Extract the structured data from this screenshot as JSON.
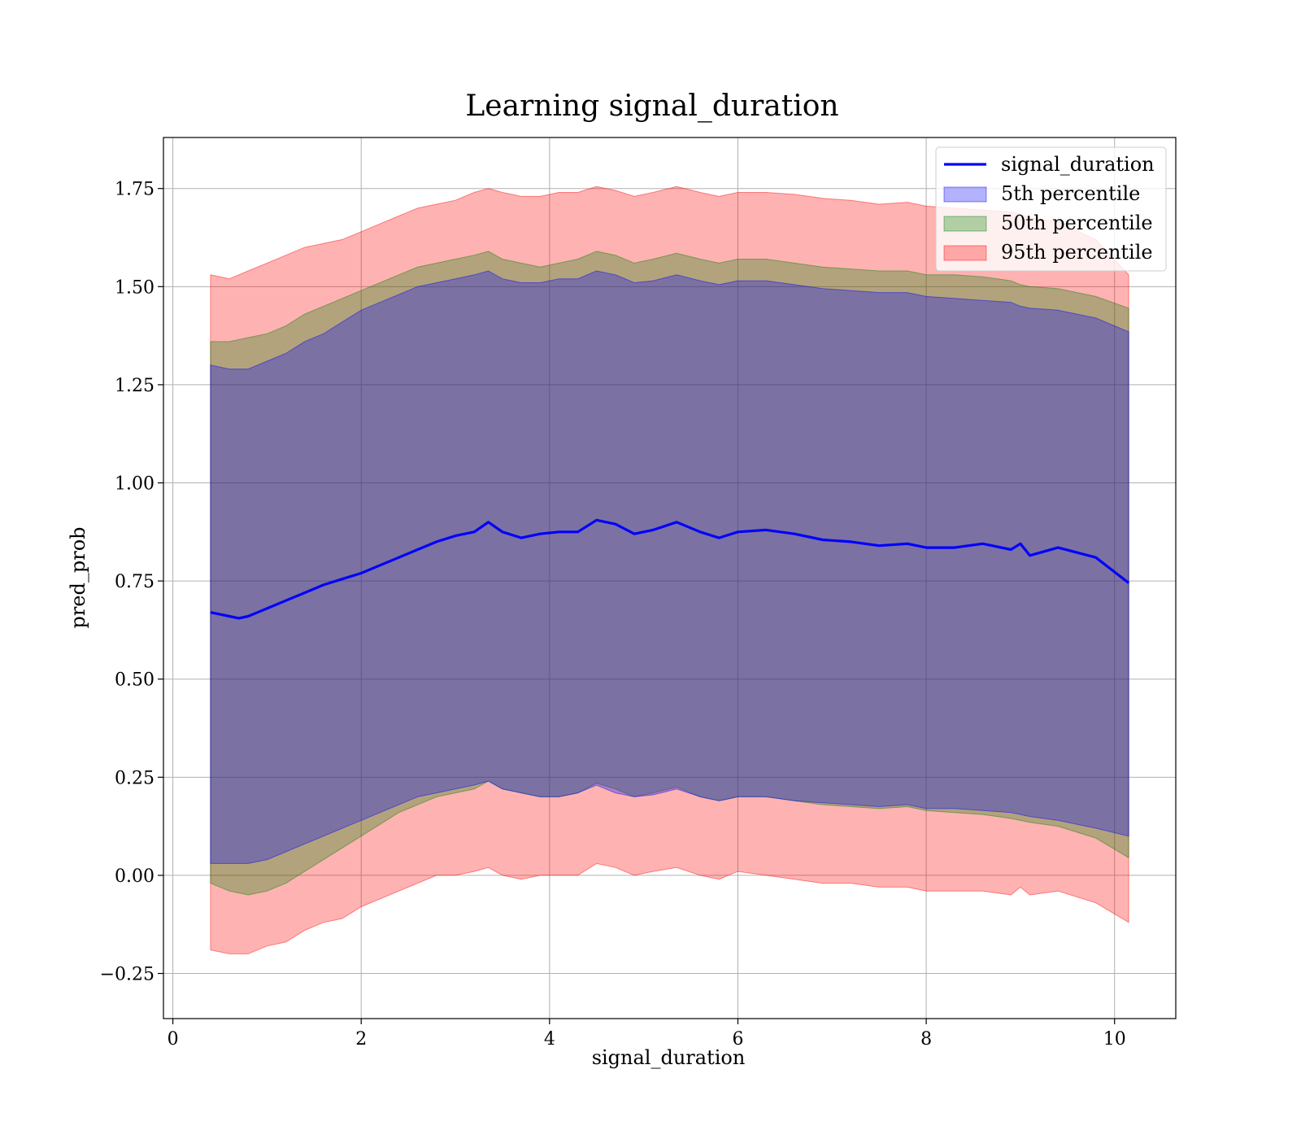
{
  "chart_data": {
    "type": "line",
    "title": "Learning signal_duration",
    "xlabel": "signal_duration",
    "ylabel": "pred_prob",
    "xlim": [
      -0.1,
      10.65
    ],
    "ylim": [
      -0.365,
      1.88
    ],
    "xticks": [
      0,
      2,
      4,
      6,
      8,
      10
    ],
    "xtick_labels": [
      "0",
      "2",
      "4",
      "6",
      "8",
      "10"
    ],
    "yticks": [
      -0.25,
      0,
      0.25,
      0.5,
      0.75,
      1.0,
      1.25,
      1.5,
      1.75
    ],
    "ytick_labels": [
      "−0.25",
      "0.00",
      "0.25",
      "0.50",
      "0.75",
      "1.00",
      "1.25",
      "1.50",
      "1.75"
    ],
    "grid": true,
    "legend_position": "top-right",
    "legend": [
      {
        "label": "signal_duration",
        "kind": "line",
        "color": "#0000ff"
      },
      {
        "label": "5th percentile",
        "kind": "patch",
        "color": "#0000ff"
      },
      {
        "label": "50th percentile",
        "kind": "patch",
        "color": "#008000"
      },
      {
        "label": "95th percentile",
        "kind": "patch",
        "color": "#ff0000"
      }
    ],
    "series": [
      {
        "name": "signal_duration",
        "color": "#0000ff",
        "x": [
          0.4,
          0.5,
          0.6,
          0.7,
          0.8,
          0.9,
          1.0,
          1.2,
          1.4,
          1.6,
          1.8,
          2.0,
          2.2,
          2.4,
          2.6,
          2.8,
          3.0,
          3.2,
          3.35,
          3.5,
          3.7,
          3.9,
          4.1,
          4.3,
          4.5,
          4.7,
          4.9,
          5.1,
          5.35,
          5.6,
          5.8,
          6.0,
          6.3,
          6.6,
          6.9,
          7.2,
          7.5,
          7.8,
          8.0,
          8.3,
          8.6,
          8.9,
          9.0,
          9.1,
          9.4,
          9.8,
          10.15
        ],
        "y": [
          0.67,
          0.665,
          0.66,
          0.655,
          0.66,
          0.67,
          0.68,
          0.7,
          0.72,
          0.74,
          0.755,
          0.77,
          0.79,
          0.81,
          0.83,
          0.85,
          0.865,
          0.875,
          0.9,
          0.875,
          0.86,
          0.87,
          0.875,
          0.875,
          0.905,
          0.895,
          0.87,
          0.88,
          0.9,
          0.875,
          0.86,
          0.875,
          0.88,
          0.87,
          0.855,
          0.85,
          0.84,
          0.845,
          0.835,
          0.835,
          0.845,
          0.83,
          0.845,
          0.815,
          0.835,
          0.81,
          0.745
        ]
      }
    ],
    "bands": [
      {
        "name": "95th percentile",
        "color": "#ff0000",
        "opacity": 0.3,
        "x": [
          0.4,
          0.6,
          0.8,
          1.0,
          1.2,
          1.4,
          1.6,
          1.8,
          2.0,
          2.2,
          2.4,
          2.6,
          2.8,
          3.0,
          3.2,
          3.35,
          3.5,
          3.7,
          3.9,
          4.1,
          4.3,
          4.5,
          4.7,
          4.9,
          5.1,
          5.35,
          5.6,
          5.8,
          6.0,
          6.3,
          6.6,
          6.9,
          7.2,
          7.5,
          7.8,
          8.0,
          8.3,
          8.6,
          8.9,
          9.0,
          9.1,
          9.4,
          9.8,
          10.15
        ],
        "upper": [
          1.53,
          1.52,
          1.54,
          1.56,
          1.58,
          1.6,
          1.61,
          1.62,
          1.64,
          1.66,
          1.68,
          1.7,
          1.71,
          1.72,
          1.74,
          1.75,
          1.74,
          1.73,
          1.73,
          1.74,
          1.74,
          1.755,
          1.745,
          1.73,
          1.74,
          1.755,
          1.74,
          1.73,
          1.74,
          1.74,
          1.735,
          1.725,
          1.72,
          1.71,
          1.715,
          1.705,
          1.7,
          1.695,
          1.69,
          1.685,
          1.675,
          1.665,
          1.62,
          1.53
        ],
        "lower": [
          -0.19,
          -0.2,
          -0.2,
          -0.18,
          -0.17,
          -0.14,
          -0.12,
          -0.11,
          -0.08,
          -0.06,
          -0.04,
          -0.02,
          0.0,
          0.0,
          0.01,
          0.02,
          0.0,
          -0.01,
          0.0,
          0.0,
          0.0,
          0.03,
          0.02,
          0.0,
          0.01,
          0.02,
          0.0,
          -0.01,
          0.01,
          0.0,
          -0.01,
          -0.02,
          -0.02,
          -0.03,
          -0.03,
          -0.04,
          -0.04,
          -0.04,
          -0.05,
          -0.03,
          -0.05,
          -0.04,
          -0.07,
          -0.12
        ]
      },
      {
        "name": "50th percentile",
        "color": "#008000",
        "opacity": 0.3,
        "x": [
          0.4,
          0.6,
          0.8,
          1.0,
          1.2,
          1.4,
          1.6,
          1.8,
          2.0,
          2.2,
          2.4,
          2.6,
          2.8,
          3.0,
          3.2,
          3.35,
          3.5,
          3.7,
          3.9,
          4.1,
          4.3,
          4.5,
          4.7,
          4.9,
          5.1,
          5.35,
          5.6,
          5.8,
          6.0,
          6.3,
          6.6,
          6.9,
          7.2,
          7.5,
          7.8,
          8.0,
          8.3,
          8.6,
          8.9,
          9.0,
          9.1,
          9.4,
          9.8,
          10.15
        ],
        "upper": [
          1.36,
          1.36,
          1.37,
          1.38,
          1.4,
          1.43,
          1.45,
          1.47,
          1.49,
          1.51,
          1.53,
          1.55,
          1.56,
          1.57,
          1.58,
          1.59,
          1.57,
          1.56,
          1.55,
          1.56,
          1.57,
          1.59,
          1.58,
          1.56,
          1.57,
          1.585,
          1.57,
          1.56,
          1.57,
          1.57,
          1.56,
          1.55,
          1.545,
          1.54,
          1.54,
          1.53,
          1.53,
          1.525,
          1.515,
          1.505,
          1.5,
          1.495,
          1.475,
          1.445
        ],
        "lower": [
          -0.02,
          -0.04,
          -0.05,
          -0.04,
          -0.02,
          0.01,
          0.04,
          0.07,
          0.1,
          0.13,
          0.16,
          0.18,
          0.2,
          0.21,
          0.22,
          0.24,
          0.22,
          0.21,
          0.2,
          0.2,
          0.21,
          0.235,
          0.22,
          0.2,
          0.21,
          0.225,
          0.2,
          0.19,
          0.2,
          0.2,
          0.19,
          0.18,
          0.175,
          0.17,
          0.175,
          0.165,
          0.16,
          0.155,
          0.145,
          0.14,
          0.135,
          0.125,
          0.095,
          0.045
        ]
      },
      {
        "name": "5th percentile",
        "color": "#0000ff",
        "opacity": 0.3,
        "x": [
          0.4,
          0.6,
          0.8,
          1.0,
          1.2,
          1.4,
          1.6,
          1.8,
          2.0,
          2.2,
          2.4,
          2.6,
          2.8,
          3.0,
          3.2,
          3.35,
          3.5,
          3.7,
          3.9,
          4.1,
          4.3,
          4.5,
          4.7,
          4.9,
          5.1,
          5.35,
          5.6,
          5.8,
          6.0,
          6.3,
          6.6,
          6.9,
          7.2,
          7.5,
          7.8,
          8.0,
          8.3,
          8.6,
          8.9,
          9.0,
          9.1,
          9.4,
          9.8,
          10.15
        ],
        "upper": [
          1.3,
          1.29,
          1.29,
          1.31,
          1.33,
          1.36,
          1.38,
          1.41,
          1.44,
          1.46,
          1.48,
          1.5,
          1.51,
          1.52,
          1.53,
          1.54,
          1.52,
          1.51,
          1.51,
          1.52,
          1.52,
          1.54,
          1.53,
          1.51,
          1.515,
          1.53,
          1.515,
          1.505,
          1.515,
          1.515,
          1.505,
          1.495,
          1.49,
          1.485,
          1.485,
          1.475,
          1.47,
          1.465,
          1.46,
          1.45,
          1.445,
          1.44,
          1.42,
          1.385
        ],
        "lower": [
          0.03,
          0.03,
          0.03,
          0.04,
          0.06,
          0.08,
          0.1,
          0.12,
          0.14,
          0.16,
          0.18,
          0.2,
          0.21,
          0.22,
          0.23,
          0.24,
          0.22,
          0.21,
          0.2,
          0.2,
          0.21,
          0.23,
          0.21,
          0.2,
          0.205,
          0.22,
          0.2,
          0.19,
          0.2,
          0.2,
          0.19,
          0.185,
          0.18,
          0.175,
          0.18,
          0.17,
          0.17,
          0.165,
          0.16,
          0.155,
          0.15,
          0.14,
          0.12,
          0.1
        ]
      }
    ]
  }
}
